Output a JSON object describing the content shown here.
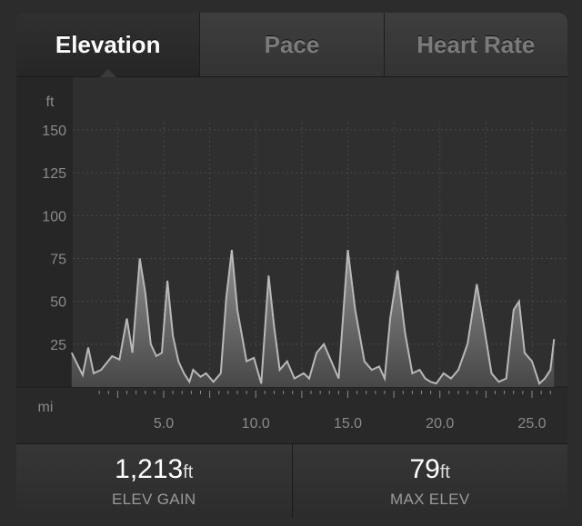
{
  "tabs": [
    {
      "label": "Elevation",
      "active": true
    },
    {
      "label": "Pace",
      "active": false
    },
    {
      "label": "Heart Rate",
      "active": false
    }
  ],
  "chart_data": {
    "type": "area",
    "ylabel": "ft",
    "xlabel": "mi",
    "ylim": [
      0,
      165
    ],
    "xlim": [
      0,
      26.2
    ],
    "yticks": [
      "25",
      "50",
      "75",
      "100",
      "125",
      "150"
    ],
    "xticks": [
      "5.0",
      "10.0",
      "15.0",
      "20.0",
      "25.0"
    ],
    "grid": true,
    "colors": {
      "fill_top": "#9a9a9a",
      "fill_bottom": "#4a4a4a",
      "line": "#b8b8b8"
    },
    "x": [
      0,
      0.6,
      0.9,
      1.2,
      1.6,
      2.2,
      2.6,
      3.0,
      3.3,
      3.7,
      4.0,
      4.3,
      4.6,
      4.9,
      5.2,
      5.5,
      5.8,
      6.1,
      6.4,
      6.6,
      7.0,
      7.3,
      7.7,
      8.1,
      8.4,
      8.7,
      9.0,
      9.5,
      9.9,
      10.3,
      10.7,
      11.0,
      11.3,
      11.7,
      12.1,
      12.6,
      12.9,
      13.3,
      13.7,
      14.1,
      14.5,
      15.0,
      15.4,
      15.9,
      16.3,
      16.7,
      17.0,
      17.3,
      17.7,
      18.1,
      18.5,
      18.9,
      19.2,
      19.5,
      19.8,
      20.2,
      20.6,
      21.0,
      21.5,
      22.0,
      22.4,
      22.8,
      23.2,
      23.6,
      24.0,
      24.3,
      24.6,
      25.0,
      25.4,
      25.7,
      26.0,
      26.2
    ],
    "values": [
      20,
      7,
      23,
      8,
      10,
      18,
      16,
      40,
      20,
      75,
      55,
      25,
      18,
      20,
      62,
      30,
      15,
      8,
      3,
      10,
      6,
      8,
      3,
      8,
      52,
      80,
      45,
      15,
      17,
      2,
      65,
      35,
      10,
      15,
      5,
      8,
      5,
      20,
      25,
      15,
      5,
      80,
      45,
      15,
      10,
      12,
      5,
      40,
      68,
      32,
      8,
      10,
      5,
      3,
      2,
      8,
      5,
      10,
      25,
      60,
      35,
      8,
      3,
      5,
      45,
      50,
      20,
      15,
      2,
      5,
      10,
      28
    ]
  },
  "stats": [
    {
      "value": "1,213",
      "unit": "ft",
      "label": "ELEV GAIN"
    },
    {
      "value": "79",
      "unit": "ft",
      "label": "MAX ELEV"
    }
  ]
}
